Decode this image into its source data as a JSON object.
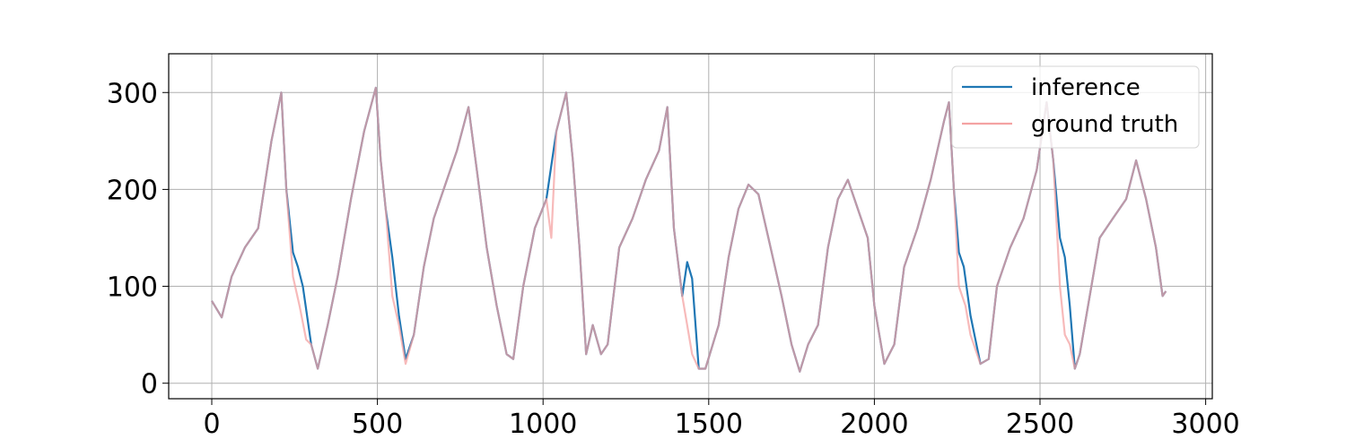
{
  "chart_data": {
    "type": "line",
    "title": "",
    "xlabel": "",
    "ylabel": "",
    "xlim": [
      -130,
      3020
    ],
    "ylim": [
      -16,
      340
    ],
    "grid": true,
    "legend_placement": "top-right",
    "x_ticks": [
      0,
      500,
      1000,
      1500,
      2000,
      2500,
      3000
    ],
    "x_tick_labels": [
      "0",
      "500",
      "1000",
      "1500",
      "2000",
      "2500",
      "3000"
    ],
    "y_ticks": [
      0,
      100,
      200,
      300
    ],
    "y_tick_labels": [
      "0",
      "100",
      "200",
      "300"
    ],
    "series": [
      {
        "name": "inference",
        "color": "#1f77b4",
        "points": [
          [
            0,
            85
          ],
          [
            30,
            68
          ],
          [
            60,
            110
          ],
          [
            100,
            140
          ],
          [
            140,
            160
          ],
          [
            180,
            250
          ],
          [
            210,
            300
          ],
          [
            225,
            200
          ],
          [
            245,
            135
          ],
          [
            260,
            120
          ],
          [
            275,
            100
          ],
          [
            300,
            40
          ],
          [
            320,
            15
          ],
          [
            350,
            60
          ],
          [
            380,
            110
          ],
          [
            420,
            190
          ],
          [
            460,
            260
          ],
          [
            495,
            305
          ],
          [
            510,
            230
          ],
          [
            525,
            180
          ],
          [
            545,
            130
          ],
          [
            565,
            70
          ],
          [
            585,
            25
          ],
          [
            610,
            50
          ],
          [
            640,
            120
          ],
          [
            670,
            170
          ],
          [
            700,
            200
          ],
          [
            740,
            240
          ],
          [
            775,
            285
          ],
          [
            800,
            220
          ],
          [
            830,
            140
          ],
          [
            860,
            80
          ],
          [
            890,
            30
          ],
          [
            910,
            25
          ],
          [
            940,
            100
          ],
          [
            975,
            160
          ],
          [
            1010,
            190
          ],
          [
            1040,
            260
          ],
          [
            1070,
            300
          ],
          [
            1090,
            230
          ],
          [
            1110,
            140
          ],
          [
            1130,
            30
          ],
          [
            1150,
            60
          ],
          [
            1175,
            30
          ],
          [
            1195,
            40
          ],
          [
            1230,
            140
          ],
          [
            1270,
            170
          ],
          [
            1310,
            210
          ],
          [
            1350,
            240
          ],
          [
            1375,
            285
          ],
          [
            1395,
            160
          ],
          [
            1420,
            90
          ],
          [
            1435,
            125
          ],
          [
            1450,
            108
          ],
          [
            1470,
            15
          ],
          [
            1490,
            15
          ],
          [
            1530,
            60
          ],
          [
            1560,
            130
          ],
          [
            1590,
            180
          ],
          [
            1620,
            205
          ],
          [
            1650,
            195
          ],
          [
            1680,
            150
          ],
          [
            1720,
            90
          ],
          [
            1750,
            40
          ],
          [
            1775,
            12
          ],
          [
            1800,
            40
          ],
          [
            1830,
            60
          ],
          [
            1860,
            140
          ],
          [
            1890,
            190
          ],
          [
            1920,
            210
          ],
          [
            1950,
            180
          ],
          [
            1980,
            150
          ],
          [
            2000,
            80
          ],
          [
            2030,
            20
          ],
          [
            2060,
            40
          ],
          [
            2090,
            120
          ],
          [
            2130,
            160
          ],
          [
            2170,
            210
          ],
          [
            2210,
            270
          ],
          [
            2225,
            290
          ],
          [
            2240,
            200
          ],
          [
            2255,
            135
          ],
          [
            2270,
            120
          ],
          [
            2290,
            70
          ],
          [
            2320,
            20
          ],
          [
            2345,
            25
          ],
          [
            2370,
            100
          ],
          [
            2410,
            140
          ],
          [
            2450,
            170
          ],
          [
            2490,
            220
          ],
          [
            2520,
            290
          ],
          [
            2540,
            230
          ],
          [
            2560,
            150
          ],
          [
            2575,
            130
          ],
          [
            2590,
            80
          ],
          [
            2605,
            15
          ],
          [
            2620,
            30
          ],
          [
            2650,
            90
          ],
          [
            2680,
            150
          ],
          [
            2720,
            170
          ],
          [
            2760,
            190
          ],
          [
            2790,
            230
          ],
          [
            2820,
            190
          ],
          [
            2850,
            140
          ],
          [
            2870,
            90
          ],
          [
            2880,
            95
          ]
        ]
      },
      {
        "name": "ground truth",
        "color": "#f4a3a3",
        "points": [
          [
            0,
            85
          ],
          [
            30,
            68
          ],
          [
            60,
            110
          ],
          [
            100,
            140
          ],
          [
            140,
            160
          ],
          [
            180,
            250
          ],
          [
            210,
            300
          ],
          [
            225,
            200
          ],
          [
            245,
            110
          ],
          [
            265,
            80
          ],
          [
            285,
            45
          ],
          [
            300,
            40
          ],
          [
            320,
            15
          ],
          [
            350,
            60
          ],
          [
            380,
            110
          ],
          [
            420,
            190
          ],
          [
            460,
            260
          ],
          [
            495,
            305
          ],
          [
            510,
            230
          ],
          [
            525,
            180
          ],
          [
            545,
            90
          ],
          [
            565,
            60
          ],
          [
            585,
            20
          ],
          [
            610,
            50
          ],
          [
            640,
            120
          ],
          [
            670,
            170
          ],
          [
            700,
            200
          ],
          [
            740,
            240
          ],
          [
            775,
            285
          ],
          [
            800,
            220
          ],
          [
            830,
            140
          ],
          [
            860,
            80
          ],
          [
            890,
            30
          ],
          [
            910,
            25
          ],
          [
            940,
            100
          ],
          [
            975,
            160
          ],
          [
            1010,
            190
          ],
          [
            1025,
            150
          ],
          [
            1040,
            260
          ],
          [
            1070,
            300
          ],
          [
            1090,
            230
          ],
          [
            1110,
            140
          ],
          [
            1130,
            30
          ],
          [
            1150,
            60
          ],
          [
            1175,
            30
          ],
          [
            1195,
            40
          ],
          [
            1230,
            140
          ],
          [
            1270,
            170
          ],
          [
            1310,
            210
          ],
          [
            1350,
            240
          ],
          [
            1375,
            285
          ],
          [
            1395,
            160
          ],
          [
            1420,
            90
          ],
          [
            1435,
            60
          ],
          [
            1450,
            30
          ],
          [
            1470,
            15
          ],
          [
            1490,
            15
          ],
          [
            1530,
            60
          ],
          [
            1560,
            130
          ],
          [
            1590,
            180
          ],
          [
            1620,
            205
          ],
          [
            1650,
            195
          ],
          [
            1680,
            150
          ],
          [
            1720,
            90
          ],
          [
            1750,
            40
          ],
          [
            1775,
            12
          ],
          [
            1800,
            40
          ],
          [
            1830,
            60
          ],
          [
            1860,
            140
          ],
          [
            1890,
            190
          ],
          [
            1920,
            210
          ],
          [
            1950,
            180
          ],
          [
            1980,
            150
          ],
          [
            2000,
            80
          ],
          [
            2030,
            20
          ],
          [
            2060,
            40
          ],
          [
            2090,
            120
          ],
          [
            2130,
            160
          ],
          [
            2170,
            210
          ],
          [
            2210,
            270
          ],
          [
            2225,
            290
          ],
          [
            2240,
            200
          ],
          [
            2255,
            100
          ],
          [
            2275,
            80
          ],
          [
            2290,
            50
          ],
          [
            2320,
            20
          ],
          [
            2345,
            25
          ],
          [
            2370,
            100
          ],
          [
            2410,
            140
          ],
          [
            2450,
            170
          ],
          [
            2490,
            220
          ],
          [
            2520,
            290
          ],
          [
            2540,
            230
          ],
          [
            2560,
            100
          ],
          [
            2575,
            50
          ],
          [
            2590,
            40
          ],
          [
            2605,
            15
          ],
          [
            2620,
            30
          ],
          [
            2650,
            90
          ],
          [
            2680,
            150
          ],
          [
            2720,
            170
          ],
          [
            2760,
            190
          ],
          [
            2790,
            230
          ],
          [
            2820,
            190
          ],
          [
            2850,
            140
          ],
          [
            2870,
            90
          ],
          [
            2880,
            95
          ]
        ]
      }
    ]
  }
}
